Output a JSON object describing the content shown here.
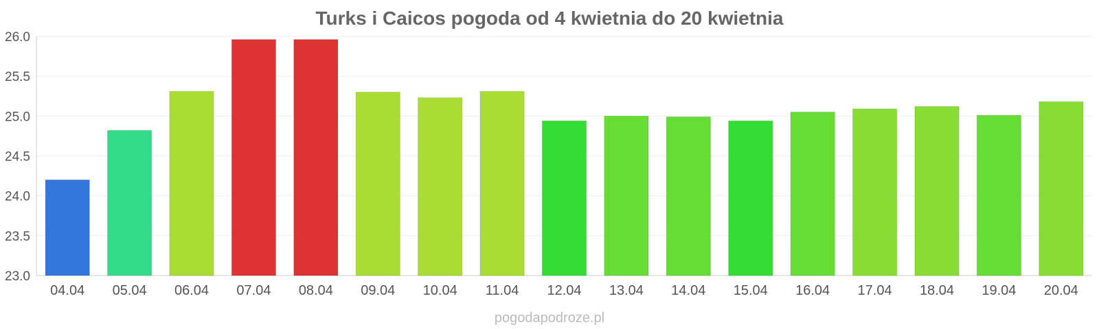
{
  "chart_data": {
    "type": "bar",
    "title": "Turks i Caicos pogoda od 4 kwietnia do 20 kwietnia",
    "xlabel": "",
    "ylabel": "",
    "ylim": [
      23.0,
      26.0
    ],
    "yticks": [
      "23.0",
      "23.5",
      "24.0",
      "24.5",
      "25.0",
      "25.5",
      "26.0"
    ],
    "grid": true,
    "categories": [
      "04.04",
      "05.04",
      "06.04",
      "07.04",
      "08.04",
      "09.04",
      "10.04",
      "11.04",
      "12.04",
      "13.04",
      "14.04",
      "15.04",
      "16.04",
      "17.04",
      "18.04",
      "19.04",
      "20.04"
    ],
    "values": [
      24.2,
      24.82,
      25.31,
      25.96,
      25.96,
      25.3,
      25.23,
      25.31,
      24.94,
      25.0,
      24.99,
      24.94,
      25.05,
      25.09,
      25.12,
      25.01,
      25.18
    ],
    "colors": [
      "#3377dd",
      "#33dd88",
      "#aadd33",
      "#dd3333",
      "#dd3333",
      "#aadd33",
      "#aadd33",
      "#aadd33",
      "#33dd33",
      "#66dd33",
      "#66dd33",
      "#33dd33",
      "#66dd33",
      "#88dd33",
      "#88dd33",
      "#66dd33",
      "#88dd33"
    ]
  },
  "watermark": "pogodapodroze.pl"
}
